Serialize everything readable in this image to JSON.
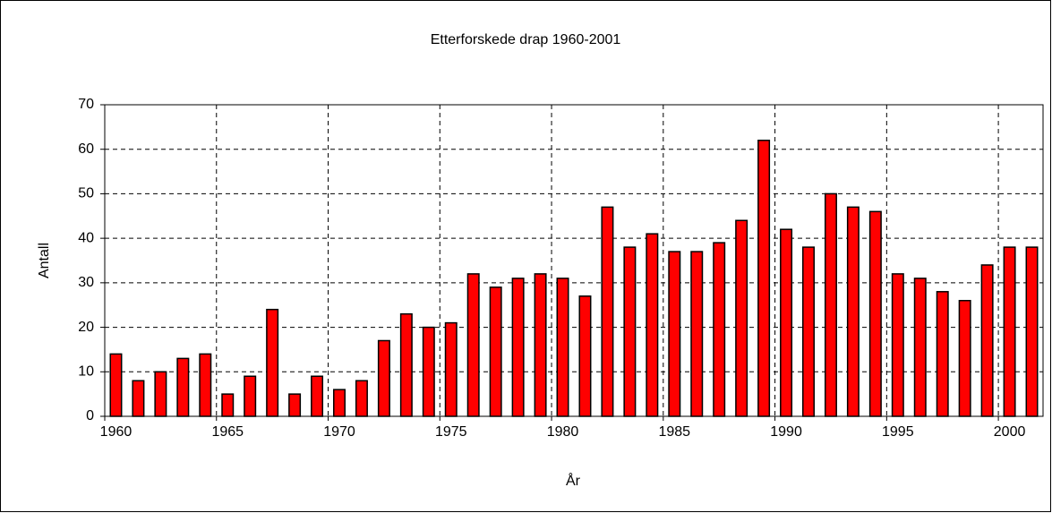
{
  "chart_data": {
    "type": "bar",
    "title": "Etterforskede drap 1960-2001",
    "x_label": "År",
    "y_label": "Antall",
    "categories": [
      "1960",
      null,
      null,
      null,
      null,
      "1965",
      null,
      null,
      null,
      null,
      "1970",
      null,
      null,
      null,
      null,
      "1975",
      null,
      null,
      null,
      null,
      "1980",
      null,
      null,
      null,
      null,
      "1985",
      null,
      null,
      null,
      null,
      "1990",
      null,
      null,
      null,
      null,
      "1995",
      null,
      null,
      null,
      null,
      "2000",
      null
    ],
    "values": [
      14,
      8,
      10,
      13,
      14,
      5,
      9,
      24,
      5,
      9,
      6,
      8,
      17,
      23,
      20,
      21,
      32,
      29,
      31,
      32,
      31,
      27,
      47,
      38,
      41,
      37,
      37,
      39,
      44,
      62,
      42,
      38,
      50,
      47,
      46,
      32,
      31,
      28,
      26,
      34,
      38,
      38
    ],
    "color": "#ff0000",
    "ylim": [
      0,
      70
    ],
    "yticks": [
      0,
      10,
      20,
      30,
      40,
      50,
      60,
      70
    ],
    "grid": true
  }
}
